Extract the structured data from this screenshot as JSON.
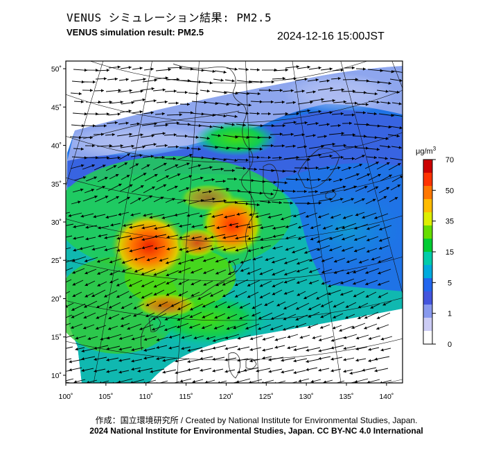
{
  "title_jp": "VENUS シミュレーション結果: PM2.5",
  "title_en": "VENUS simulation result: PM2.5",
  "timestamp": "2024-12-16 15:00JST",
  "map": {
    "lat_labels": [
      "50˚",
      "45˚",
      "40˚",
      "35˚",
      "30˚",
      "25˚",
      "20˚",
      "15˚",
      "10˚"
    ],
    "lat_values": [
      50,
      45,
      40,
      35,
      30,
      25,
      20,
      15,
      10
    ],
    "lon_labels": [
      "100˚",
      "105˚",
      "110˚",
      "115˚",
      "120˚",
      "125˚",
      "130˚",
      "135˚",
      "140˚"
    ],
    "lon_values": [
      100,
      105,
      110,
      115,
      120,
      125,
      130,
      135,
      140
    ]
  },
  "colorbar": {
    "unit": "μg/m",
    "unit_exp": "3",
    "tick_labels": [
      "70",
      "50",
      "35",
      "15",
      "5",
      "1",
      "0"
    ],
    "colors": [
      "#cc0000",
      "#ff3300",
      "#ff7700",
      "#ffbb00",
      "#ddee00",
      "#66dd00",
      "#00cc33",
      "#00ccaa",
      "#00aadd",
      "#2266ee",
      "#4455dd",
      "#8899ee",
      "#ccccf5",
      "#ffffff"
    ]
  },
  "credits": {
    "line1": "作成：国立環境研究所 / Created by National Institute for Environmental Studies, Japan.",
    "line2": "2024 National Institute for Environmental Studies, Japan. CC BY-NC 4.0 International"
  }
}
